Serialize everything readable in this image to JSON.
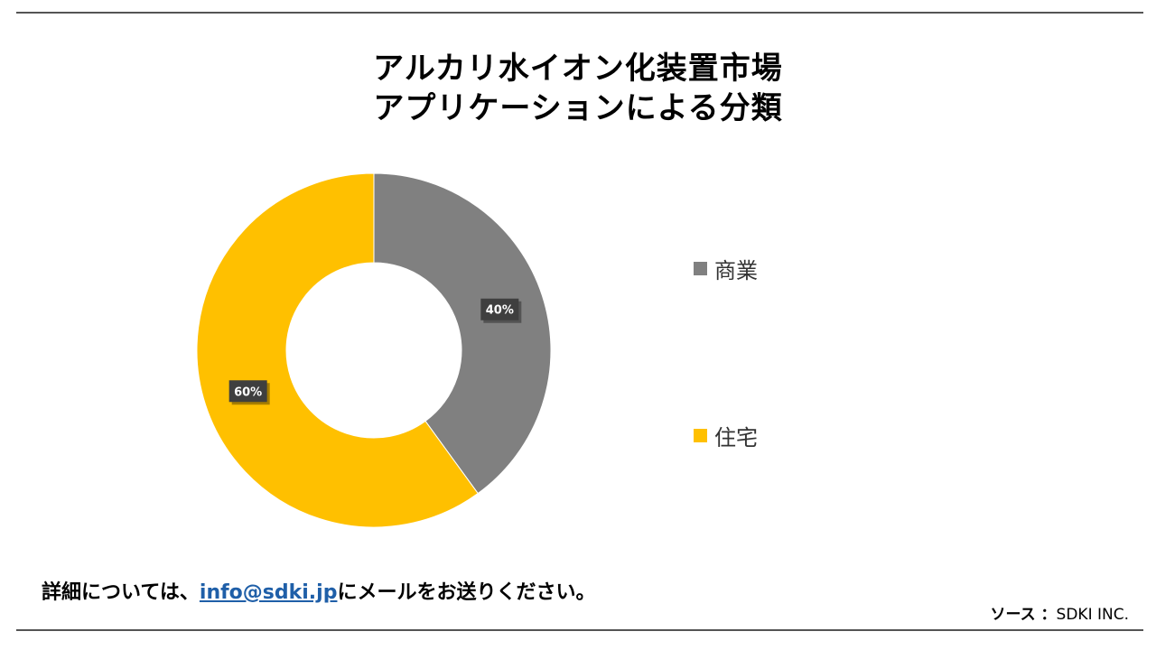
{
  "title": {
    "line1": "アルカリ水イオン化装置市場",
    "line2": "アプリケーションによる分類"
  },
  "chart_data": {
    "type": "pie",
    "donut": true,
    "categories": [
      "商業",
      "住宅"
    ],
    "values": [
      40,
      60
    ],
    "data_labels": [
      "40%",
      "60%"
    ],
    "colors": [
      "#808080",
      "#FFC000"
    ],
    "legend_position": "right"
  },
  "footer": {
    "note_prefix": "詳細については、",
    "email": "info@sdki.jp",
    "note_suffix": "にメールをお送りください。",
    "source_label": "ソース ：",
    "source_value": "SDKI INC."
  }
}
